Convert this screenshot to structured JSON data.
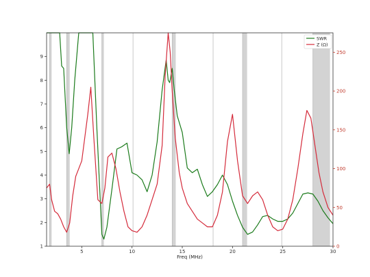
{
  "chart_data": {
    "type": "line",
    "xlabel": "Freq (MHz)",
    "xlim": [
      1.5,
      30
    ],
    "x_ticks": [
      5,
      10,
      15,
      20,
      25,
      30
    ],
    "y_left": {
      "lim": [
        1,
        10
      ],
      "ticks": [
        1,
        2,
        3,
        4,
        5,
        6,
        7,
        8,
        9
      ]
    },
    "y_right": {
      "lim": [
        0,
        275
      ],
      "ticks": [
        0,
        50,
        100,
        150,
        200,
        250
      ]
    },
    "legend": {
      "placement": "top-right",
      "entries": [
        "SWR",
        "Z (Ω)"
      ]
    },
    "shaded_bands": [
      [
        1.8,
        2.0
      ],
      [
        3.5,
        3.8
      ],
      [
        7.0,
        7.2
      ],
      [
        14.0,
        14.35
      ],
      [
        21.0,
        21.45
      ],
      [
        28.0,
        29.7
      ]
    ],
    "vertical_gridlines": [
      1.8,
      3.5,
      7.0,
      10.1,
      14.0,
      18.07,
      21.0,
      24.9,
      28.0
    ],
    "grid": "vertical lines only",
    "series": [
      {
        "name": "SWR",
        "axis": "left",
        "color": "#1a7a1a",
        "x": [
          1.5,
          2.0,
          2.3,
          2.6,
          2.8,
          3.0,
          3.2,
          3.5,
          3.75,
          4.0,
          4.3,
          4.7,
          5.0,
          5.3,
          5.7,
          6.1,
          6.5,
          7.0,
          7.2,
          7.5,
          8.0,
          8.5,
          9.0,
          9.5,
          10.0,
          10.5,
          11.0,
          11.5,
          12.0,
          12.5,
          13.0,
          13.4,
          13.6,
          13.75,
          14.0,
          14.2,
          14.5,
          15.0,
          15.5,
          16.0,
          16.5,
          17.0,
          17.5,
          18.0,
          18.5,
          19.0,
          19.5,
          20.0,
          20.5,
          21.0,
          21.5,
          22.0,
          22.5,
          23.0,
          23.5,
          24.0,
          24.5,
          25.0,
          25.5,
          26.0,
          26.5,
          27.0,
          27.5,
          28.0,
          28.5,
          29.0,
          29.5,
          30.0
        ],
        "values": [
          10,
          10,
          10,
          10,
          10,
          8.6,
          8.5,
          6.0,
          4.9,
          6.0,
          8.0,
          10,
          10,
          10,
          10,
          10,
          6.0,
          1.5,
          1.3,
          1.8,
          3.4,
          5.1,
          5.2,
          5.35,
          4.1,
          4.0,
          3.8,
          3.3,
          4.0,
          5.4,
          7.6,
          8.85,
          8.0,
          7.9,
          8.5,
          7.6,
          6.5,
          5.8,
          4.3,
          4.1,
          4.25,
          3.6,
          3.1,
          3.3,
          3.6,
          4.0,
          3.6,
          2.9,
          2.3,
          1.8,
          1.5,
          1.6,
          1.9,
          2.25,
          2.3,
          2.15,
          2.05,
          2.05,
          2.15,
          2.4,
          2.8,
          3.2,
          3.25,
          3.2,
          2.9,
          2.5,
          2.2,
          1.95
        ]
      },
      {
        "name": "Z (Ω)",
        "axis": "right",
        "color": "#d42a3a",
        "x": [
          1.5,
          1.8,
          2.0,
          2.3,
          2.6,
          2.9,
          3.2,
          3.5,
          3.8,
          4.1,
          4.4,
          4.7,
          5.0,
          5.3,
          5.6,
          5.9,
          6.2,
          6.6,
          7.0,
          7.3,
          7.6,
          8.0,
          8.4,
          8.8,
          9.2,
          9.6,
          10.0,
          10.5,
          11.0,
          11.5,
          12.0,
          12.5,
          13.0,
          13.3,
          13.6,
          13.8,
          14.0,
          14.3,
          14.7,
          15.0,
          15.5,
          16.0,
          16.5,
          17.0,
          17.5,
          18.0,
          18.5,
          19.0,
          19.5,
          20.0,
          20.5,
          21.0,
          21.5,
          22.0,
          22.5,
          23.0,
          23.5,
          24.0,
          24.5,
          25.0,
          25.5,
          26.0,
          26.5,
          27.0,
          27.4,
          27.8,
          28.2,
          28.6,
          29.0,
          29.5,
          30.0
        ],
        "values": [
          75,
          80,
          60,
          45,
          42,
          35,
          25,
          18,
          30,
          65,
          90,
          100,
          110,
          140,
          170,
          205,
          140,
          60,
          55,
          75,
          115,
          120,
          100,
          70,
          45,
          25,
          20,
          18,
          25,
          40,
          60,
          80,
          130,
          220,
          275,
          250,
          200,
          140,
          95,
          75,
          55,
          45,
          35,
          30,
          25,
          25,
          40,
          70,
          135,
          170,
          110,
          65,
          55,
          65,
          70,
          60,
          40,
          25,
          20,
          22,
          35,
          60,
          100,
          145,
          175,
          165,
          130,
          95,
          70,
          50,
          40
        ]
      }
    ]
  }
}
